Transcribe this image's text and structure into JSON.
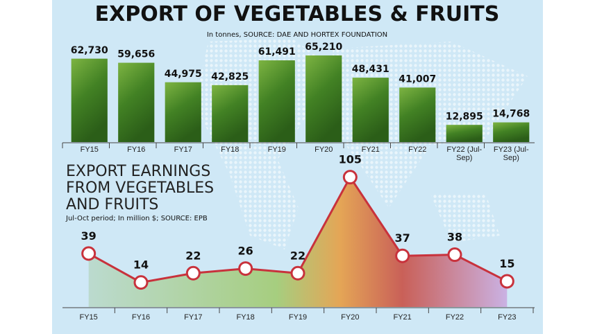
{
  "chart_data": [
    {
      "type": "bar",
      "title": "EXPORT OF VEGETABLES & FRUITS",
      "subtitle": "In tonnes, SOURCE: DAE AND HORTEX FOUNDATION",
      "categories": [
        "FY15",
        "FY16",
        "FY17",
        "FY18",
        "FY19",
        "FY20",
        "FY21",
        "FY22",
        "FY22 (Jul-Sep)",
        "FY23 (Jul-Sep)"
      ],
      "values": [
        62730,
        59656,
        44975,
        42825,
        61491,
        65210,
        48431,
        41007,
        12895,
        14768
      ],
      "value_labels": [
        "62,730",
        "59,656",
        "44,975",
        "42,825",
        "61,491",
        "65,210",
        "48,431",
        "41,007",
        "12,895",
        "14,768"
      ],
      "color": "#4f8f2a"
    },
    {
      "type": "line",
      "title": "EXPORT EARNINGS FROM VEGETABLES AND FRUITS",
      "subtitle": "Jul-Oct period; In million $; SOURCE: EPB",
      "categories": [
        "FY15",
        "FY16",
        "FY17",
        "FY18",
        "FY19",
        "FY20",
        "FY21",
        "FY22",
        "FY23"
      ],
      "values": [
        39,
        14,
        22,
        26,
        22,
        105,
        37,
        38,
        15
      ],
      "color": "#c8323c",
      "area_color": "#9fc96a"
    }
  ]
}
